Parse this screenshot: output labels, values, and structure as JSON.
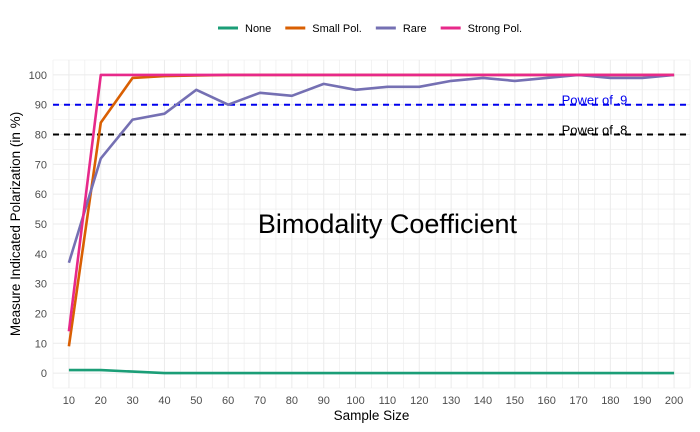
{
  "chart_data": {
    "type": "line",
    "title": "",
    "xlabel": "Sample Size",
    "ylabel": "Measure Indicated Polarization (in %)",
    "x": [
      10,
      20,
      30,
      40,
      50,
      60,
      70,
      80,
      90,
      100,
      110,
      120,
      130,
      140,
      150,
      160,
      170,
      180,
      190,
      200
    ],
    "xlim": [
      5,
      205
    ],
    "ylim": [
      -5,
      105
    ],
    "xticks": [
      10,
      20,
      30,
      40,
      50,
      60,
      70,
      80,
      90,
      100,
      110,
      120,
      130,
      140,
      150,
      160,
      170,
      180,
      190,
      200
    ],
    "yticks": [
      0,
      10,
      20,
      30,
      40,
      50,
      60,
      70,
      80,
      90,
      100
    ],
    "grid": true,
    "legend_position": "top",
    "series": [
      {
        "name": "None",
        "color": "#1b9e77",
        "values": [
          1,
          1,
          0.5,
          0,
          0,
          0,
          0,
          0,
          0,
          0,
          0,
          0,
          0,
          0,
          0,
          0,
          0,
          0,
          0,
          0
        ]
      },
      {
        "name": "Small Pol.",
        "color": "#d95f02",
        "values": [
          9,
          84,
          99,
          99.6,
          99.8,
          100,
          100,
          100,
          100,
          100,
          100,
          100,
          100,
          100,
          100,
          100,
          100,
          100,
          100,
          100
        ]
      },
      {
        "name": "Rare",
        "color": "#7570b3",
        "values": [
          37,
          72,
          85,
          87,
          95,
          90,
          94,
          93,
          97,
          95,
          96,
          96,
          98,
          99,
          98,
          99,
          100,
          99,
          99,
          100
        ]
      },
      {
        "name": "Strong Pol.",
        "color": "#e7298a",
        "values": [
          14,
          100,
          100,
          100,
          100,
          100,
          100,
          100,
          100,
          100,
          100,
          100,
          100,
          100,
          100,
          100,
          100,
          100,
          100,
          100
        ]
      }
    ],
    "reference_lines": [
      {
        "y": 90,
        "label": "Power of .9",
        "color": "#0000ee"
      },
      {
        "y": 80,
        "label": "Power of .8",
        "color": "#000000"
      }
    ],
    "annotations": [
      {
        "text": "Bimodality Coefficient",
        "x": 110,
        "y": 50
      }
    ]
  }
}
